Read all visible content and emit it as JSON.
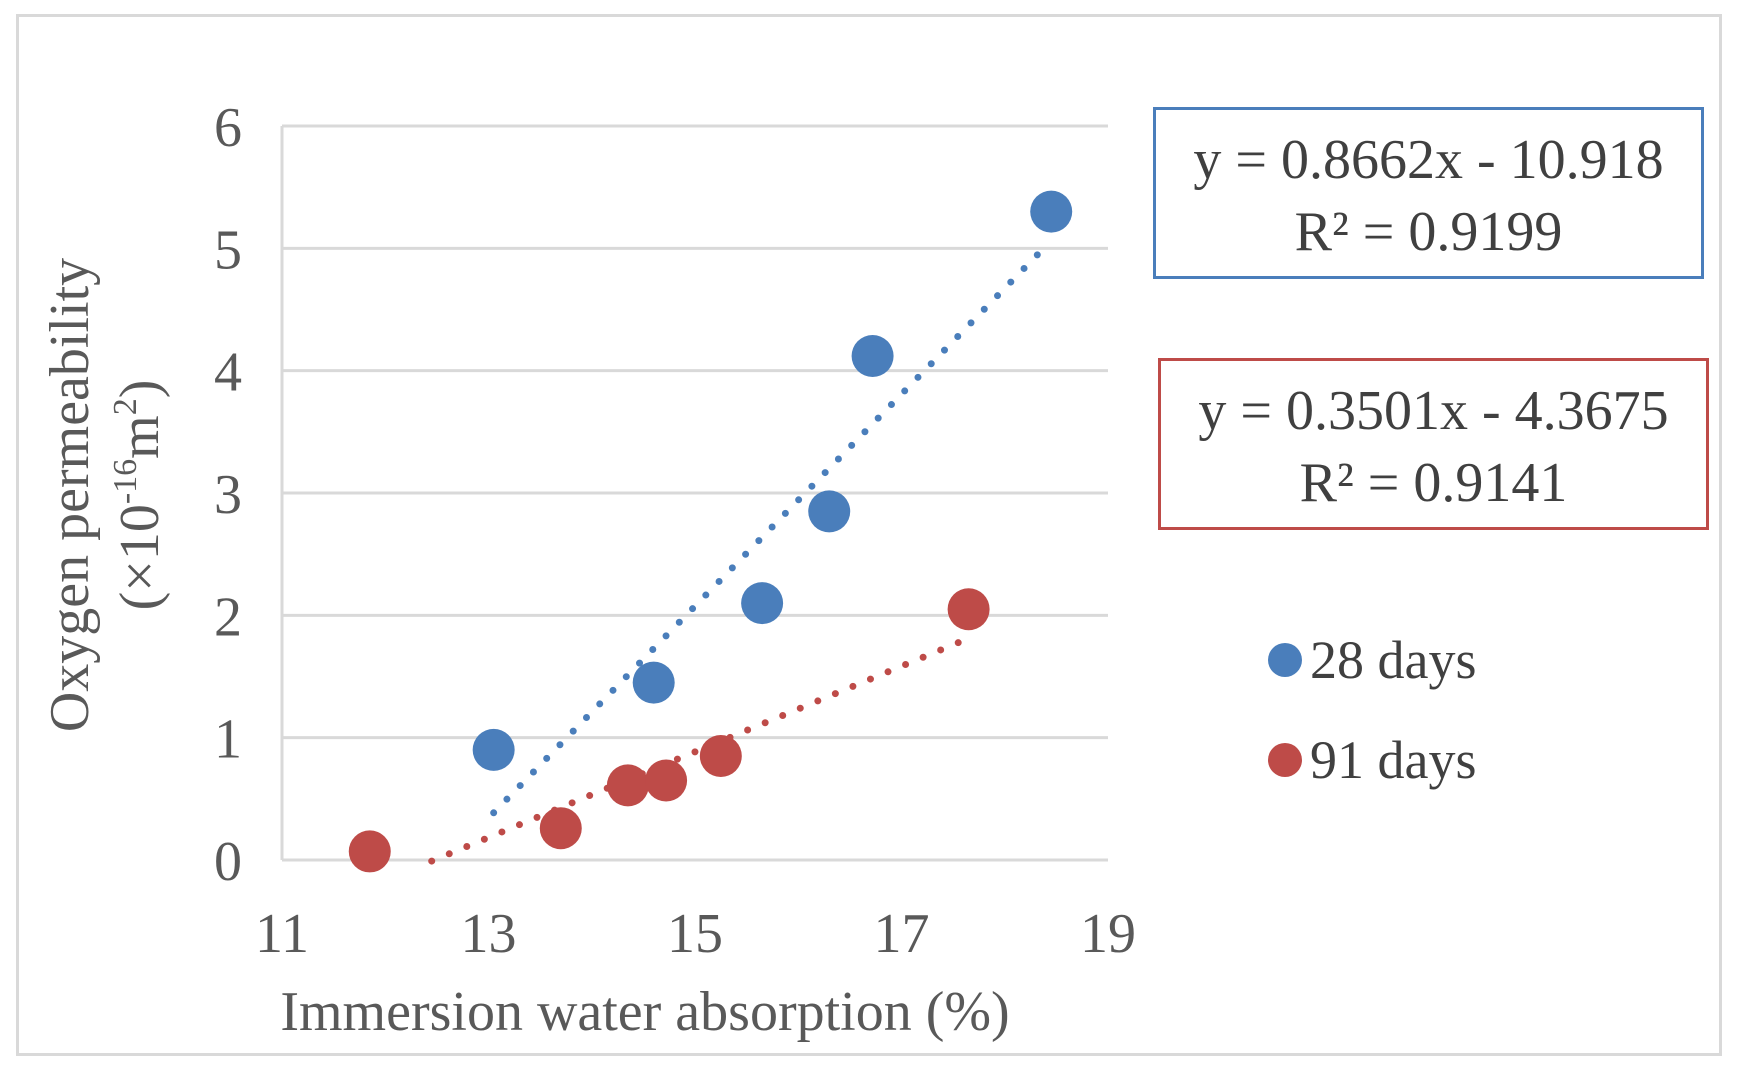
{
  "chart_data": {
    "type": "scatter",
    "xlabel": "Immersion water absorption (%)",
    "ylabel_line1": "Oxygen permeability",
    "ylabel_line2_prefix": "(×10",
    "ylabel_line2_exp": "-16",
    "ylabel_line2_unit": "m",
    "ylabel_line2_unit_exp": "2",
    "ylabel_line2_suffix": ")",
    "xlim": [
      11,
      19
    ],
    "ylim": [
      0,
      6
    ],
    "xticks": [
      "11",
      "13",
      "15",
      "17",
      "19"
    ],
    "yticks": [
      "0",
      "1",
      "2",
      "3",
      "4",
      "5",
      "6"
    ],
    "grid": true,
    "series": [
      {
        "name": "28 days",
        "color": "#4a7ebb",
        "x": [
          13.05,
          14.6,
          15.65,
          16.3,
          16.72,
          18.45
        ],
        "y": [
          0.9,
          1.45,
          2.1,
          2.85,
          4.12,
          5.3
        ],
        "trendline": {
          "slope": 0.8662,
          "intercept": -10.918,
          "x_range": [
            13.05,
            18.35
          ]
        },
        "equation": "y = 0.8662x - 10.918",
        "r2": "R² = 0.9199"
      },
      {
        "name": "91 days",
        "color": "#be4b48",
        "x": [
          11.85,
          13.7,
          14.35,
          14.72,
          15.25,
          17.65
        ],
        "y": [
          0.07,
          0.26,
          0.61,
          0.65,
          0.85,
          2.05
        ],
        "trendline": {
          "slope": 0.3501,
          "intercept": -4.3675,
          "x_range": [
            12.45,
            17.55
          ]
        },
        "equation": "y = 0.3501x - 4.3675",
        "r2": "R² = 0.9141"
      }
    ],
    "legend": {
      "position": "right",
      "entries": [
        "28 days",
        "91 days"
      ]
    }
  }
}
